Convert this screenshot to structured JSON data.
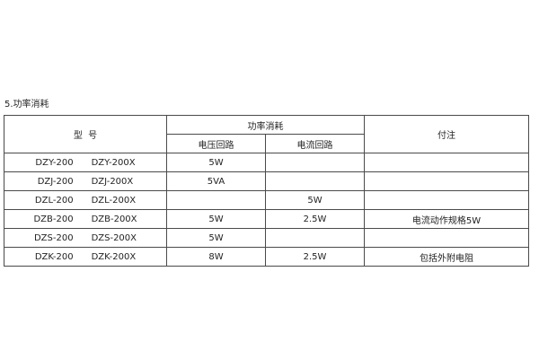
{
  "section_title": "5.功率消耗",
  "headers": {
    "model": "型  号",
    "power": "功率消耗",
    "voltage_circuit": "电压回路",
    "current_circuit": "电流回路",
    "note": "付注"
  },
  "rows": [
    {
      "model_a": "DZY-200",
      "model_b": "DZY-200X",
      "voltage": "5W",
      "current": "",
      "note": ""
    },
    {
      "model_a": "DZJ-200",
      "model_b": "DZJ-200X",
      "voltage": "5VA",
      "current": "",
      "note": ""
    },
    {
      "model_a": "DZL-200",
      "model_b": "DZL-200X",
      "voltage": "",
      "current": "5W",
      "note": ""
    },
    {
      "model_a": "DZB-200",
      "model_b": "DZB-200X",
      "voltage": "5W",
      "current": "2.5W",
      "note": "电流动作规格5W"
    },
    {
      "model_a": "DZS-200",
      "model_b": "DZS-200X",
      "voltage": "5W",
      "current": "",
      "note": ""
    },
    {
      "model_a": "DZK-200",
      "model_b": "DZK-200X",
      "voltage": "8W",
      "current": "2.5W",
      "note": "包括外附电阻"
    }
  ]
}
